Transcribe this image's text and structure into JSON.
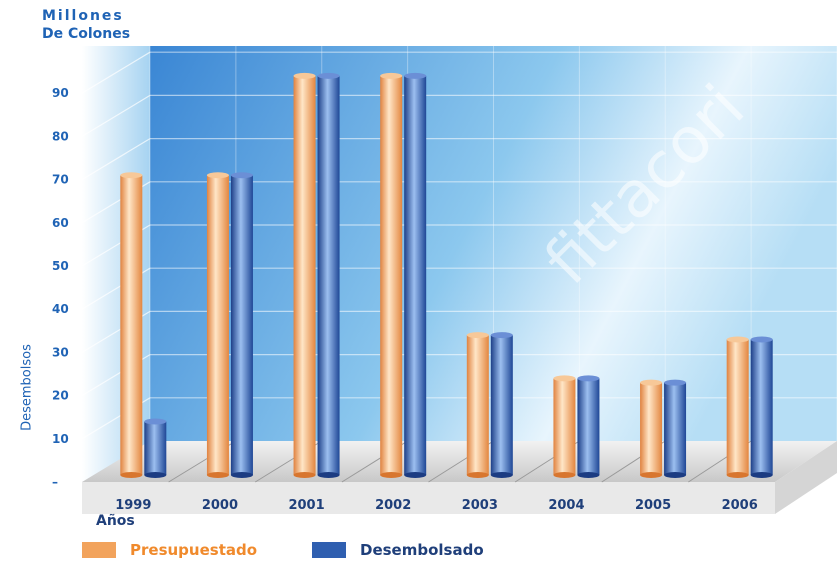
{
  "units_line1": "Millones",
  "units_line2": "De Colones",
  "watermark": "fittacori",
  "colors": {
    "presupuestado": "#f2a35c",
    "desembolsado": "#2f5fb0",
    "axis_text": "#1f63b5"
  },
  "chart_data": {
    "type": "bar",
    "xlabel": "Años",
    "ylabel": "Desembolsos",
    "ylim": [
      0,
      95
    ],
    "yticks": [
      "–",
      "10",
      "20",
      "30",
      "40",
      "50",
      "60",
      "70",
      "80",
      "90"
    ],
    "ytick_values": [
      0,
      10,
      20,
      30,
      40,
      50,
      60,
      70,
      80,
      90
    ],
    "categories": [
      "1999",
      "2000",
      "2001",
      "2002",
      "2003",
      "2004",
      "2005",
      "2006"
    ],
    "series": [
      {
        "name": "Presupuestado",
        "values": [
          71,
          71,
          94,
          94,
          34,
          24,
          23,
          33
        ]
      },
      {
        "name": "Desembolsado",
        "values": [
          14,
          71,
          94,
          94,
          34,
          24,
          23,
          33
        ]
      }
    ],
    "grid": true,
    "legend": "bottom-left"
  }
}
